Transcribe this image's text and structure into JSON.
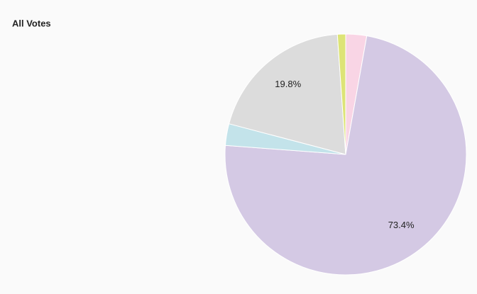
{
  "chart_data": {
    "type": "pie",
    "title": "All Votes",
    "values": [
      2.8,
      73.4,
      2.9,
      19.8,
      1.1
    ],
    "value_labels": [
      null,
      "73.4%",
      null,
      "19.8%",
      null
    ],
    "colors": [
      "#f9d5e5",
      "#d4c9e4",
      "#c3e3ea",
      "#dcdcdc",
      "#dde477"
    ]
  }
}
